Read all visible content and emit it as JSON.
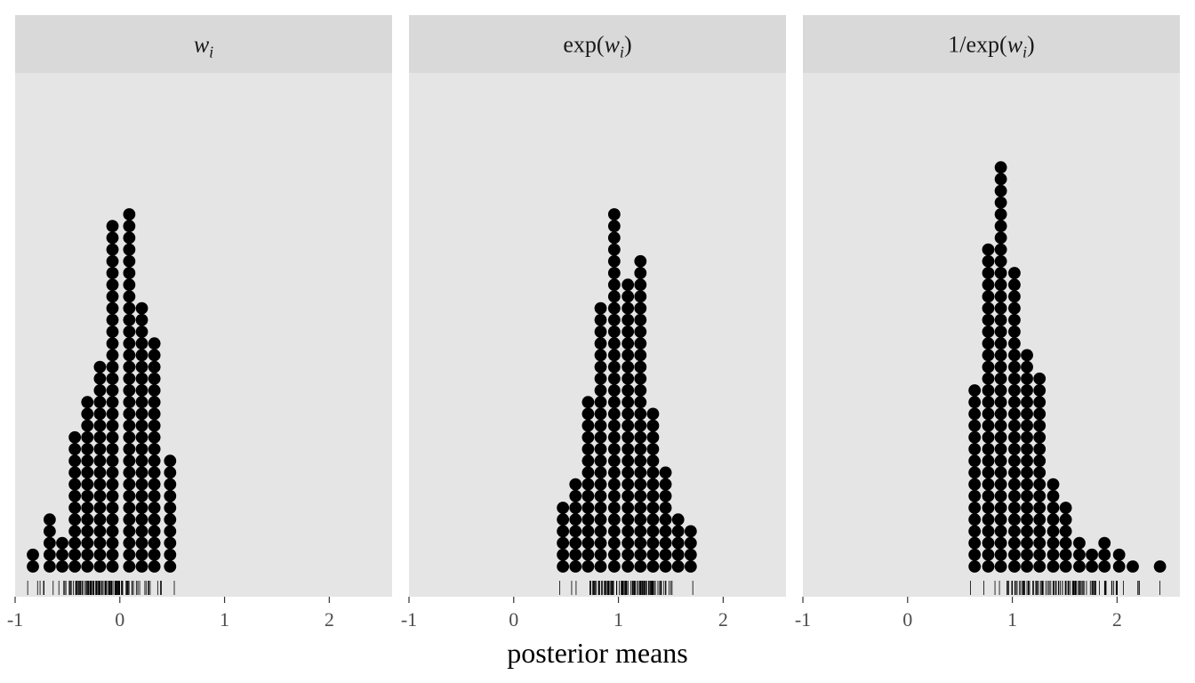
{
  "chart_data": {
    "type": "dotplot",
    "xlabel": "posterior means",
    "ylabel": "",
    "xlim": [
      -1,
      2.6
    ],
    "x_ticks": [
      -1,
      0,
      1,
      2
    ],
    "x_tick_labels": [
      "-1",
      "0",
      "1",
      "2"
    ],
    "grid": false,
    "colors": {
      "panel": "#e5e5e5",
      "strip": "#d9d9d9",
      "dot": "#000000",
      "rug": "#000000"
    },
    "panels": [
      {
        "strip": {
          "base": "w",
          "sub": "i",
          "prefix": "",
          "suffix": ""
        },
        "bins": [
          {
            "x": -0.83,
            "count": 2
          },
          {
            "x": -0.67,
            "count": 5
          },
          {
            "x": -0.55,
            "count": 3
          },
          {
            "x": -0.43,
            "count": 12
          },
          {
            "x": -0.31,
            "count": 15
          },
          {
            "x": -0.19,
            "count": 18
          },
          {
            "x": -0.07,
            "count": 30
          },
          {
            "x": 0.09,
            "count": 31
          },
          {
            "x": 0.21,
            "count": 23
          },
          {
            "x": 0.33,
            "count": 20
          },
          {
            "x": 0.48,
            "count": 10
          }
        ],
        "rug": {
          "min": -0.88,
          "max": 0.52
        }
      },
      {
        "strip": {
          "base": "w",
          "sub": "i",
          "prefix": "exp(",
          "suffix": ")"
        },
        "bins": [
          {
            "x": 0.47,
            "count": 6
          },
          {
            "x": 0.59,
            "count": 8
          },
          {
            "x": 0.71,
            "count": 15
          },
          {
            "x": 0.83,
            "count": 23
          },
          {
            "x": 0.96,
            "count": 31
          },
          {
            "x": 1.09,
            "count": 25
          },
          {
            "x": 1.21,
            "count": 27
          },
          {
            "x": 1.33,
            "count": 14
          },
          {
            "x": 1.45,
            "count": 9
          },
          {
            "x": 1.57,
            "count": 5
          },
          {
            "x": 1.69,
            "count": 4
          }
        ],
        "rug": {
          "min": 0.44,
          "max": 1.71
        }
      },
      {
        "strip": {
          "base": "w",
          "sub": "i",
          "prefix": "1/exp(",
          "suffix": ")"
        },
        "bins": [
          {
            "x": 0.64,
            "count": 16
          },
          {
            "x": 0.77,
            "count": 28
          },
          {
            "x": 0.89,
            "count": 35
          },
          {
            "x": 1.02,
            "count": 26
          },
          {
            "x": 1.14,
            "count": 19
          },
          {
            "x": 1.26,
            "count": 17
          },
          {
            "x": 1.39,
            "count": 8
          },
          {
            "x": 1.51,
            "count": 6
          },
          {
            "x": 1.64,
            "count": 3
          },
          {
            "x": 1.76,
            "count": 2
          },
          {
            "x": 1.88,
            "count": 3
          },
          {
            "x": 2.02,
            "count": 2
          },
          {
            "x": 2.15,
            "count": 1
          },
          {
            "x": 2.41,
            "count": 1
          }
        ],
        "rug": {
          "min": 0.6,
          "max": 2.41
        }
      }
    ]
  }
}
